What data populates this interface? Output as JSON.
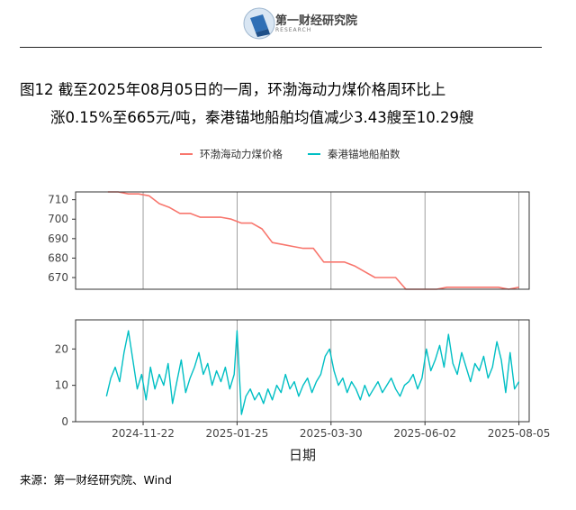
{
  "header": {
    "logo_name": "第一财经研究院",
    "logo_sub": "RESEARCH"
  },
  "title": {
    "line1": "图12 截至2025年08月05日的一周，环渤海动力煤价格周环比上",
    "line2": "涨0.15%至665元/吨，秦港锚地船舶均值减少3.43艘至10.29艘"
  },
  "source": "来源：第一财经研究院、Wind",
  "colors": {
    "coal": "#F8766D",
    "ships": "#00BFC4",
    "panel_border": "#333333",
    "vgrid": "#888888"
  },
  "chart_data": {
    "type": "line",
    "x_label": "日期",
    "x_axis": {
      "type": "date",
      "range": [
        "2024-10-07",
        "2025-08-12"
      ],
      "ticks": [
        "2024-11-22",
        "2025-01-25",
        "2025-03-30",
        "2025-06-02",
        "2025-08-05"
      ]
    },
    "legend": {
      "position": "top",
      "entries": [
        "环渤海动力煤价格",
        "秦港锚地船舶数"
      ]
    },
    "panels": [
      {
        "series": "环渤海动力煤价格",
        "ylim": [
          664,
          714
        ],
        "yticks": [
          670,
          680,
          690,
          700,
          710
        ],
        "points": [
          [
            "2024-10-29",
            714
          ],
          [
            "2024-11-05",
            714
          ],
          [
            "2024-11-12",
            713
          ],
          [
            "2024-11-19",
            713
          ],
          [
            "2024-11-26",
            712
          ],
          [
            "2024-12-03",
            708
          ],
          [
            "2024-12-10",
            706
          ],
          [
            "2024-12-17",
            703
          ],
          [
            "2024-12-24",
            703
          ],
          [
            "2024-12-31",
            701
          ],
          [
            "2025-01-07",
            701
          ],
          [
            "2025-01-14",
            701
          ],
          [
            "2025-01-21",
            700
          ],
          [
            "2025-01-28",
            698
          ],
          [
            "2025-02-04",
            698
          ],
          [
            "2025-02-11",
            695
          ],
          [
            "2025-02-18",
            688
          ],
          [
            "2025-02-25",
            687
          ],
          [
            "2025-03-04",
            686
          ],
          [
            "2025-03-11",
            685
          ],
          [
            "2025-03-18",
            685
          ],
          [
            "2025-03-25",
            678
          ],
          [
            "2025-04-01",
            678
          ],
          [
            "2025-04-08",
            678
          ],
          [
            "2025-04-15",
            676
          ],
          [
            "2025-04-22",
            673
          ],
          [
            "2025-04-29",
            670
          ],
          [
            "2025-05-06",
            670
          ],
          [
            "2025-05-13",
            670
          ],
          [
            "2025-05-20",
            664
          ],
          [
            "2025-05-27",
            664
          ],
          [
            "2025-06-03",
            664
          ],
          [
            "2025-06-10",
            664
          ],
          [
            "2025-06-17",
            665
          ],
          [
            "2025-06-24",
            665
          ],
          [
            "2025-07-01",
            665
          ],
          [
            "2025-07-08",
            665
          ],
          [
            "2025-07-15",
            665
          ],
          [
            "2025-07-22",
            665
          ],
          [
            "2025-07-29",
            664
          ],
          [
            "2025-08-05",
            665
          ]
        ]
      },
      {
        "series": "秦港锚地船舶数",
        "ylim": [
          0,
          28
        ],
        "yticks": [
          0,
          10,
          20
        ],
        "points": [
          [
            "2024-10-28",
            7
          ],
          [
            "2024-10-31",
            12
          ],
          [
            "2024-11-03",
            15
          ],
          [
            "2024-11-06",
            11
          ],
          [
            "2024-11-09",
            19
          ],
          [
            "2024-11-12",
            25
          ],
          [
            "2024-11-15",
            17
          ],
          [
            "2024-11-18",
            9
          ],
          [
            "2024-11-21",
            13
          ],
          [
            "2024-11-24",
            6
          ],
          [
            "2024-11-27",
            15
          ],
          [
            "2024-11-30",
            9
          ],
          [
            "2024-12-03",
            13
          ],
          [
            "2024-12-06",
            10
          ],
          [
            "2024-12-09",
            16
          ],
          [
            "2024-12-12",
            5
          ],
          [
            "2024-12-15",
            11
          ],
          [
            "2024-12-18",
            17
          ],
          [
            "2024-12-21",
            8
          ],
          [
            "2024-12-24",
            12
          ],
          [
            "2024-12-27",
            15
          ],
          [
            "2024-12-30",
            19
          ],
          [
            "2025-01-02",
            13
          ],
          [
            "2025-01-05",
            16
          ],
          [
            "2025-01-08",
            10
          ],
          [
            "2025-01-11",
            14
          ],
          [
            "2025-01-14",
            11
          ],
          [
            "2025-01-17",
            15
          ],
          [
            "2025-01-20",
            9
          ],
          [
            "2025-01-23",
            13
          ],
          [
            "2025-01-25",
            25
          ],
          [
            "2025-01-28",
            2
          ],
          [
            "2025-01-31",
            7
          ],
          [
            "2025-02-03",
            9
          ],
          [
            "2025-02-06",
            6
          ],
          [
            "2025-02-09",
            8
          ],
          [
            "2025-02-12",
            5
          ],
          [
            "2025-02-15",
            9
          ],
          [
            "2025-02-18",
            6
          ],
          [
            "2025-02-21",
            10
          ],
          [
            "2025-02-24",
            8
          ],
          [
            "2025-02-27",
            13
          ],
          [
            "2025-03-02",
            9
          ],
          [
            "2025-03-05",
            11
          ],
          [
            "2025-03-08",
            7
          ],
          [
            "2025-03-11",
            10
          ],
          [
            "2025-03-14",
            12
          ],
          [
            "2025-03-17",
            8
          ],
          [
            "2025-03-20",
            11
          ],
          [
            "2025-03-23",
            13
          ],
          [
            "2025-03-26",
            18
          ],
          [
            "2025-03-29",
            20
          ],
          [
            "2025-04-01",
            14
          ],
          [
            "2025-04-04",
            10
          ],
          [
            "2025-04-07",
            12
          ],
          [
            "2025-04-10",
            8
          ],
          [
            "2025-04-13",
            11
          ],
          [
            "2025-04-16",
            9
          ],
          [
            "2025-04-19",
            6
          ],
          [
            "2025-04-22",
            10
          ],
          [
            "2025-04-25",
            7
          ],
          [
            "2025-04-28",
            9
          ],
          [
            "2025-05-01",
            11
          ],
          [
            "2025-05-04",
            8
          ],
          [
            "2025-05-07",
            10
          ],
          [
            "2025-05-10",
            12
          ],
          [
            "2025-05-13",
            9
          ],
          [
            "2025-05-16",
            7
          ],
          [
            "2025-05-19",
            10
          ],
          [
            "2025-05-22",
            11
          ],
          [
            "2025-05-25",
            13
          ],
          [
            "2025-05-28",
            9
          ],
          [
            "2025-05-31",
            12
          ],
          [
            "2025-06-03",
            20
          ],
          [
            "2025-06-06",
            14
          ],
          [
            "2025-06-09",
            17
          ],
          [
            "2025-06-12",
            21
          ],
          [
            "2025-06-15",
            15
          ],
          [
            "2025-06-18",
            24
          ],
          [
            "2025-06-21",
            16
          ],
          [
            "2025-06-24",
            13
          ],
          [
            "2025-06-27",
            19
          ],
          [
            "2025-06-30",
            15
          ],
          [
            "2025-07-03",
            11
          ],
          [
            "2025-07-06",
            16
          ],
          [
            "2025-07-09",
            14
          ],
          [
            "2025-07-12",
            18
          ],
          [
            "2025-07-15",
            12
          ],
          [
            "2025-07-18",
            15
          ],
          [
            "2025-07-21",
            22
          ],
          [
            "2025-07-24",
            17
          ],
          [
            "2025-07-27",
            8
          ],
          [
            "2025-07-30",
            19
          ],
          [
            "2025-08-02",
            9
          ],
          [
            "2025-08-05",
            11
          ]
        ]
      }
    ]
  }
}
